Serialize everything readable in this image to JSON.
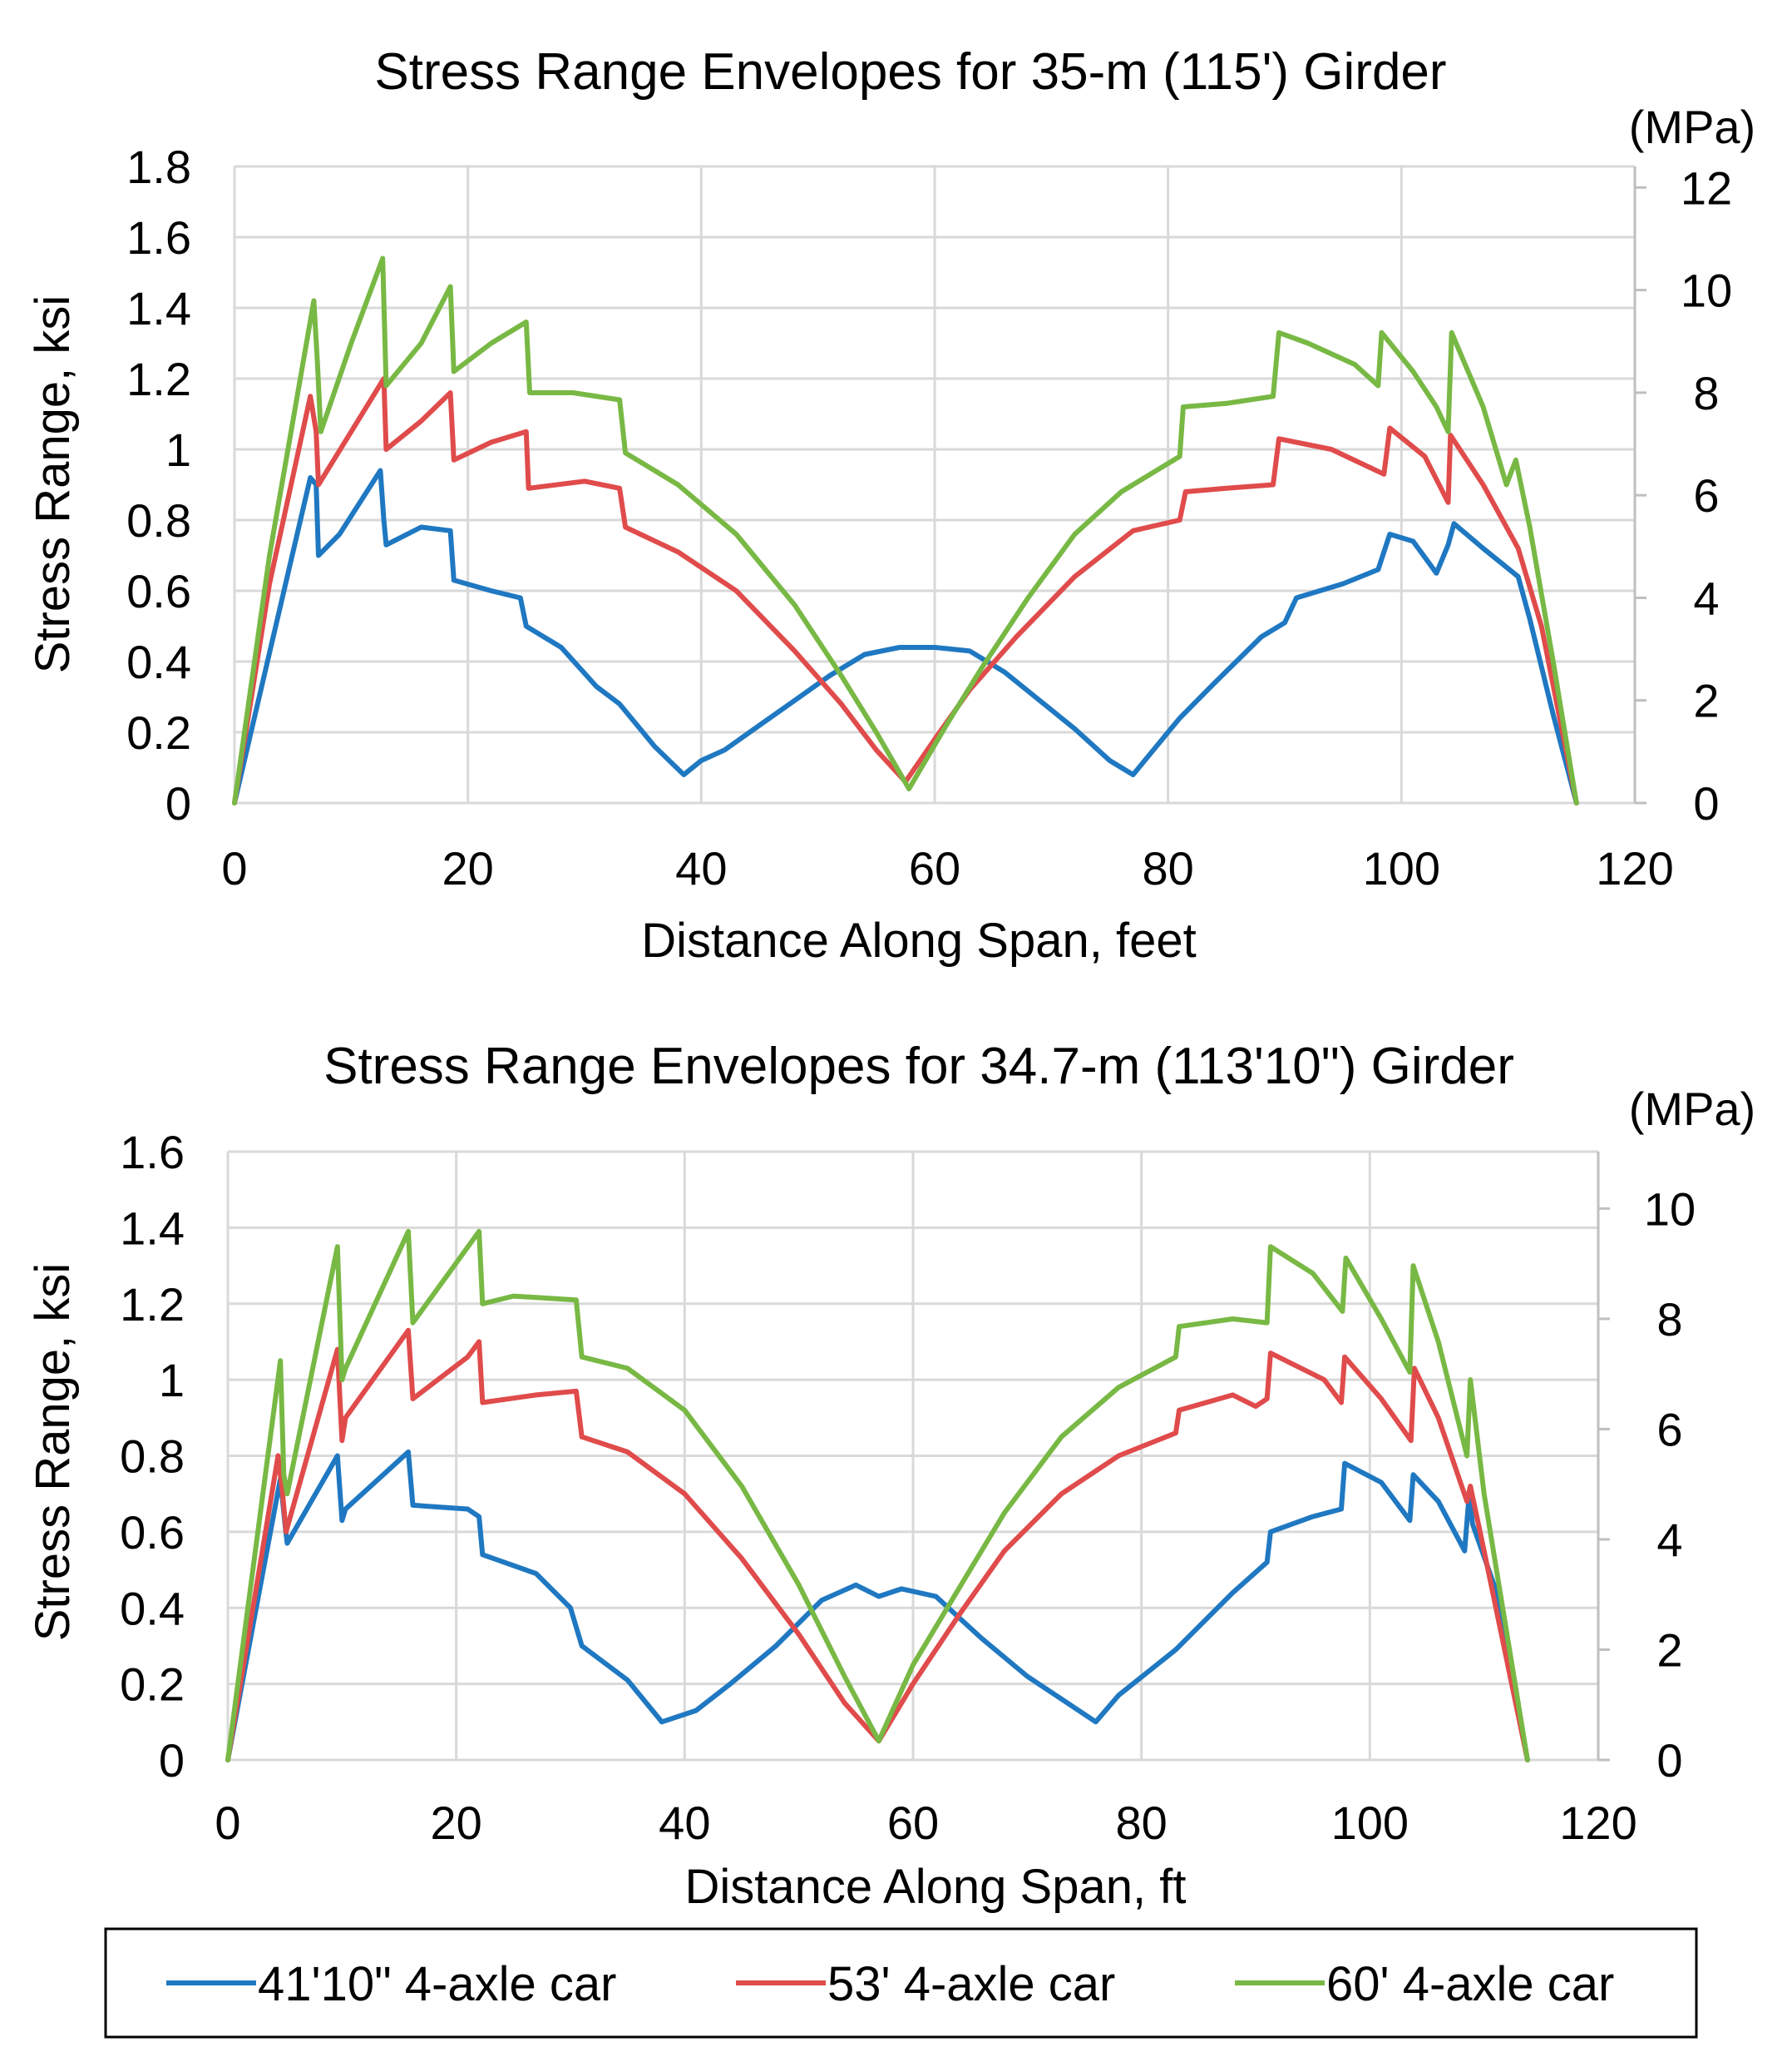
{
  "legend": {
    "items": [
      {
        "label": "41'10\" 4-axle car",
        "color": "#1f78c1"
      },
      {
        "label": "53' 4-axle car",
        "color": "#e04b4b"
      },
      {
        "label": "60' 4-axle car",
        "color": "#78b844"
      }
    ]
  },
  "chart_data": [
    {
      "type": "line",
      "title": "Stress Range Envelopes for 35-m (115') Girder",
      "xlabel": "Distance Along Span, feet",
      "ylabel": "Stress Range, ksi",
      "y2label": "(MPa)",
      "xlim": [
        0,
        120
      ],
      "ylim": [
        0,
        1.8
      ],
      "y2lim": [
        0,
        12.4106
      ],
      "xticks": [
        0,
        20,
        40,
        60,
        80,
        100,
        120
      ],
      "yticks": [
        0,
        0.2,
        0.4,
        0.6,
        0.8,
        1,
        1.2,
        1.4,
        1.6,
        1.8
      ],
      "ytick_labels": [
        "0",
        "0.2",
        "0.4",
        "0.6",
        "0.8",
        "1",
        "1.2",
        "1.4",
        "1.6",
        "1.8"
      ],
      "y2ticks": [
        0,
        2,
        4,
        6,
        8,
        10,
        12
      ],
      "grid": true,
      "series": [
        {
          "name": "41'10\" 4-axle car",
          "color": "#1f78c1",
          "x": [
            0,
            6.5,
            7.0,
            7.2,
            9,
            12.5,
            12.8,
            13,
            16,
            18.5,
            18.8,
            22,
            24.5,
            25,
            28,
            31,
            33,
            36,
            38.5,
            40,
            42,
            45,
            48,
            51,
            54,
            57,
            60,
            63,
            66,
            69,
            72,
            75,
            77,
            79,
            81,
            84,
            88,
            90,
            91,
            95,
            98,
            99,
            101,
            103,
            104,
            104.5,
            107,
            110,
            111,
            113,
            115
          ],
          "y": [
            0,
            0.92,
            0.9,
            0.7,
            0.76,
            0.94,
            0.8,
            0.73,
            0.78,
            0.77,
            0.63,
            0.6,
            0.58,
            0.5,
            0.44,
            0.33,
            0.28,
            0.16,
            0.08,
            0.12,
            0.15,
            0.22,
            0.29,
            0.36,
            0.42,
            0.44,
            0.44,
            0.43,
            0.37,
            0.29,
            0.21,
            0.12,
            0.08,
            0.16,
            0.24,
            0.34,
            0.47,
            0.51,
            0.58,
            0.62,
            0.66,
            0.76,
            0.74,
            0.65,
            0.73,
            0.79,
            0.72,
            0.64,
            0.52,
            0.25,
            0
          ]
        },
        {
          "name": "53' 4-axle car",
          "color": "#e04b4b",
          "x": [
            0,
            3,
            6.5,
            7.0,
            7.2,
            10,
            12.8,
            13,
            16,
            18.5,
            18.8,
            22,
            25,
            25.2,
            30,
            33,
            33.5,
            38,
            43,
            48,
            52,
            55,
            57.5,
            60,
            63,
            67,
            72,
            77,
            81,
            81.5,
            85,
            89,
            89.5,
            94,
            98.5,
            99,
            102,
            104,
            104.2,
            107,
            110,
            112,
            115
          ],
          "y": [
            0,
            0.62,
            1.15,
            1.05,
            0.9,
            1.05,
            1.2,
            1.0,
            1.08,
            1.16,
            0.97,
            1.02,
            1.05,
            0.89,
            0.91,
            0.89,
            0.78,
            0.71,
            0.6,
            0.43,
            0.28,
            0.15,
            0.06,
            0.18,
            0.32,
            0.47,
            0.64,
            0.77,
            0.8,
            0.88,
            0.89,
            0.9,
            1.03,
            1.0,
            0.93,
            1.06,
            0.98,
            0.85,
            1.04,
            0.9,
            0.72,
            0.5,
            0
          ]
        },
        {
          "name": "60' 4-axle car",
          "color": "#78b844",
          "x": [
            0,
            3,
            6.8,
            7.1,
            7.4,
            10,
            12.7,
            13.0,
            16,
            18.5,
            18.8,
            22,
            25,
            25.3,
            29,
            33,
            33.5,
            38,
            43,
            48,
            52,
            55,
            57.8,
            61,
            64,
            68,
            72,
            76,
            81,
            81.3,
            85,
            89,
            89.5,
            92,
            96,
            98,
            98.3,
            101,
            103,
            104,
            104.3,
            107,
            109,
            109.8,
            111,
            113,
            115
          ],
          "y": [
            0,
            0.7,
            1.42,
            1.25,
            1.05,
            1.3,
            1.54,
            1.18,
            1.3,
            1.46,
            1.22,
            1.3,
            1.36,
            1.16,
            1.16,
            1.14,
            0.99,
            0.9,
            0.76,
            0.56,
            0.36,
            0.2,
            0.04,
            0.22,
            0.38,
            0.58,
            0.76,
            0.88,
            0.98,
            1.12,
            1.13,
            1.15,
            1.33,
            1.3,
            1.24,
            1.18,
            1.33,
            1.22,
            1.12,
            1.05,
            1.33,
            1.12,
            0.9,
            0.97,
            0.78,
            0.4,
            0
          ]
        }
      ]
    },
    {
      "type": "line",
      "title": "Stress Range Envelopes for 34.7-m (113'10\") Girder",
      "xlabel": "Distance Along Span, ft",
      "ylabel": "Stress Range, ksi",
      "y2label": "(MPa)",
      "xlim": [
        0,
        120
      ],
      "ylim": [
        0,
        1.6
      ],
      "y2lim": [
        0,
        11.0316
      ],
      "xticks": [
        0,
        20,
        40,
        60,
        80,
        100,
        120
      ],
      "yticks": [
        0,
        0.2,
        0.4,
        0.6,
        0.8,
        1,
        1.2,
        1.4,
        1.6
      ],
      "ytick_labels": [
        "0",
        "0.2",
        "0.4",
        "0.6",
        "0.8",
        "1",
        "1.2",
        "1.4",
        "1.6"
      ],
      "y2ticks": [
        0,
        2,
        4,
        6,
        8,
        10
      ],
      "grid": true,
      "series": [
        {
          "name": "41'10\" 4-axle car",
          "color": "#1f78c1",
          "x": [
            0,
            4.6,
            5.0,
            5.2,
            9.6,
            10,
            10.3,
            15.8,
            16.2,
            21,
            22,
            22.3,
            27,
            30,
            31,
            35,
            38,
            41,
            44,
            48,
            52,
            55,
            57,
            59,
            62,
            66,
            70,
            74,
            76,
            78,
            83,
            88,
            91,
            91.3,
            95,
            97.5,
            97.8,
            101,
            103.5,
            103.8,
            106,
            108.3,
            108.7,
            109,
            111,
            113.8
          ],
          "y": [
            0,
            0.74,
            0.62,
            0.57,
            0.8,
            0.63,
            0.66,
            0.81,
            0.67,
            0.66,
            0.64,
            0.54,
            0.49,
            0.4,
            0.3,
            0.21,
            0.1,
            0.13,
            0.2,
            0.3,
            0.42,
            0.46,
            0.43,
            0.45,
            0.43,
            0.32,
            0.22,
            0.14,
            0.1,
            0.17,
            0.29,
            0.44,
            0.52,
            0.6,
            0.64,
            0.66,
            0.78,
            0.73,
            0.63,
            0.75,
            0.68,
            0.55,
            0.7,
            0.62,
            0.45,
            0
          ]
        },
        {
          "name": "53' 4-axle car",
          "color": "#e04b4b",
          "x": [
            0,
            4.4,
            4.8,
            5.1,
            9.6,
            10,
            10.3,
            15.8,
            16.2,
            21,
            22,
            22.3,
            27,
            30.5,
            31,
            35,
            40,
            45,
            50,
            54,
            57,
            60,
            64,
            68,
            73,
            78,
            83,
            83.3,
            88,
            90,
            91,
            91.3,
            96,
            97.5,
            97.8,
            101,
            103.6,
            103.9,
            106,
            108.5,
            108.8,
            110,
            113.8
          ],
          "y": [
            0,
            0.8,
            0.7,
            0.6,
            1.08,
            0.84,
            0.9,
            1.13,
            0.95,
            1.06,
            1.1,
            0.94,
            0.96,
            0.97,
            0.85,
            0.81,
            0.7,
            0.53,
            0.33,
            0.15,
            0.05,
            0.2,
            0.38,
            0.55,
            0.7,
            0.8,
            0.86,
            0.92,
            0.96,
            0.93,
            0.95,
            1.07,
            1.0,
            0.94,
            1.06,
            0.95,
            0.84,
            1.03,
            0.9,
            0.68,
            0.72,
            0.55,
            0
          ]
        },
        {
          "name": "60' 4-axle car",
          "color": "#78b844",
          "x": [
            0,
            4.6,
            4.9,
            5.2,
            9.6,
            10,
            10.3,
            15.8,
            16.2,
            22,
            22.3,
            25,
            30.5,
            31,
            35,
            40,
            45,
            50,
            54,
            57,
            60,
            64,
            68,
            73,
            78,
            83,
            83.3,
            88,
            91,
            91.3,
            95,
            97.6,
            97.9,
            101,
            103.5,
            103.8,
            106,
            108.5,
            108.8,
            110,
            113.8
          ],
          "y": [
            0,
            1.05,
            0.75,
            0.7,
            1.35,
            1.0,
            1.03,
            1.39,
            1.15,
            1.39,
            1.2,
            1.22,
            1.21,
            1.06,
            1.03,
            0.92,
            0.72,
            0.46,
            0.22,
            0.05,
            0.25,
            0.45,
            0.65,
            0.85,
            0.98,
            1.06,
            1.14,
            1.16,
            1.15,
            1.35,
            1.28,
            1.18,
            1.32,
            1.16,
            1.02,
            1.3,
            1.1,
            0.8,
            1.0,
            0.7,
            0
          ]
        }
      ]
    }
  ]
}
